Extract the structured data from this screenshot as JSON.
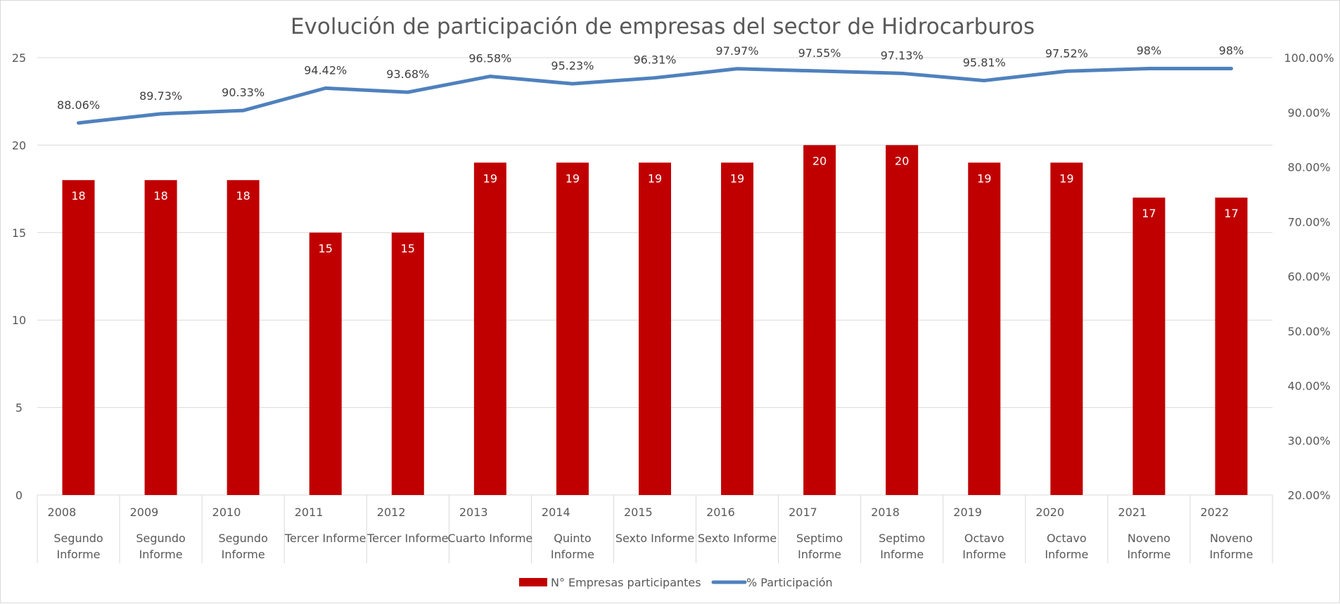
{
  "chart_data": {
    "type": "bar",
    "title": "Evolución de participación  de empresas del sector de Hidrocarburos",
    "categories": [
      {
        "year": "2008",
        "label": [
          "Segundo",
          "Informe"
        ]
      },
      {
        "year": "2009",
        "label": [
          "Segundo",
          "Informe"
        ]
      },
      {
        "year": "2010",
        "label": [
          "Segundo",
          "Informe"
        ]
      },
      {
        "year": "2011",
        "label": [
          "Tercer Informe"
        ]
      },
      {
        "year": "2012",
        "label": [
          "Tercer Informe"
        ]
      },
      {
        "year": "2013",
        "label": [
          "Cuarto Informe"
        ]
      },
      {
        "year": "2014",
        "label": [
          "Quinto",
          "Informe"
        ]
      },
      {
        "year": "2015",
        "label": [
          "Sexto Informe"
        ]
      },
      {
        "year": "2016",
        "label": [
          "Sexto Informe"
        ]
      },
      {
        "year": "2017",
        "label": [
          "Septimo",
          "Informe"
        ]
      },
      {
        "year": "2018",
        "label": [
          "Septimo",
          "Informe"
        ]
      },
      {
        "year": "2019",
        "label": [
          "Octavo",
          "Informe"
        ]
      },
      {
        "year": "2020",
        "label": [
          "Octavo",
          "Informe"
        ]
      },
      {
        "year": "2021",
        "label": [
          "Noveno",
          "Informe"
        ]
      },
      {
        "year": "2022",
        "label": [
          "Noveno",
          "Informe"
        ]
      }
    ],
    "series": [
      {
        "name": "N° Empresas participantes",
        "type": "bar",
        "axis": "left",
        "color": "#C00000",
        "values": [
          18,
          18,
          18,
          15,
          15,
          19,
          19,
          19,
          19,
          20,
          20,
          19,
          19,
          17,
          17
        ],
        "labels": [
          "18",
          "18",
          "18",
          "15",
          "15",
          "19",
          "19",
          "19",
          "19",
          "20",
          "20",
          "19",
          "19",
          "17",
          "17"
        ]
      },
      {
        "name": "% Participación",
        "type": "line",
        "axis": "right",
        "color": "#4F81BD",
        "values": [
          88.06,
          89.73,
          90.33,
          94.42,
          93.68,
          96.58,
          95.23,
          96.31,
          97.97,
          97.55,
          97.13,
          95.81,
          97.52,
          98,
          98
        ],
        "labels": [
          "88.06%",
          "89.73%",
          "90.33%",
          "94.42%",
          "93.68%",
          "96.58%",
          "95.23%",
          "96.31%",
          "97.97%",
          "97.55%",
          "97.13%",
          "95.81%",
          "97.52%",
          "98%",
          "98%"
        ]
      }
    ],
    "y_left": {
      "min": 0,
      "max": 25,
      "ticks": [
        0,
        5,
        10,
        15,
        20,
        25
      ],
      "tick_labels": [
        "0",
        "5",
        "10",
        "15",
        "20",
        "25"
      ]
    },
    "y_right": {
      "min": 20,
      "max": 100,
      "ticks": [
        20,
        30,
        40,
        50,
        60,
        70,
        80,
        90,
        100
      ],
      "tick_labels": [
        "20.00%",
        "30.00%",
        "40.00%",
        "50.00%",
        "60.00%",
        "70.00%",
        "80.00%",
        "90.00%",
        "100.00%"
      ]
    },
    "grid": true,
    "legend_position": "bottom",
    "colors": {
      "grid": "#d9d9d9",
      "axis_text": "#595959"
    }
  }
}
